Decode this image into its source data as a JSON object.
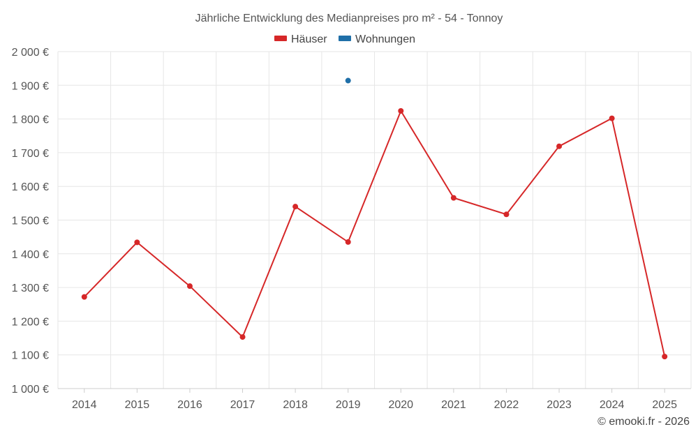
{
  "chart_data": {
    "type": "line",
    "title": "Jährliche Entwicklung des Medianpreises pro m² - 54 - Tonnoy",
    "categories": [
      "2014",
      "2015",
      "2016",
      "2017",
      "2018",
      "2019",
      "2020",
      "2021",
      "2022",
      "2023",
      "2024",
      "2025"
    ],
    "ylim": [
      1000,
      2000
    ],
    "yticks": [
      1000,
      1100,
      1200,
      1300,
      1400,
      1500,
      1600,
      1700,
      1800,
      1900,
      2000
    ],
    "ytick_labels": [
      "1 000 €",
      "1 100 €",
      "1 200 €",
      "1 300 €",
      "1 400 €",
      "1 500 €",
      "1 600 €",
      "1 700 €",
      "1 800 €",
      "1 900 €",
      "2 000 €"
    ],
    "grid": true,
    "legend_position": "top-center",
    "series": [
      {
        "name": "Häuser",
        "color": "#d62728",
        "values": [
          1272,
          1434,
          1304,
          1153,
          1540,
          1435,
          1824,
          1566,
          1517,
          1719,
          1802,
          1095
        ]
      },
      {
        "name": "Wohnungen",
        "color": "#1f6fa8",
        "values": [
          null,
          null,
          null,
          null,
          null,
          1914,
          null,
          null,
          null,
          null,
          null,
          null
        ]
      }
    ],
    "credit": "© emooki.fr - 2026"
  }
}
